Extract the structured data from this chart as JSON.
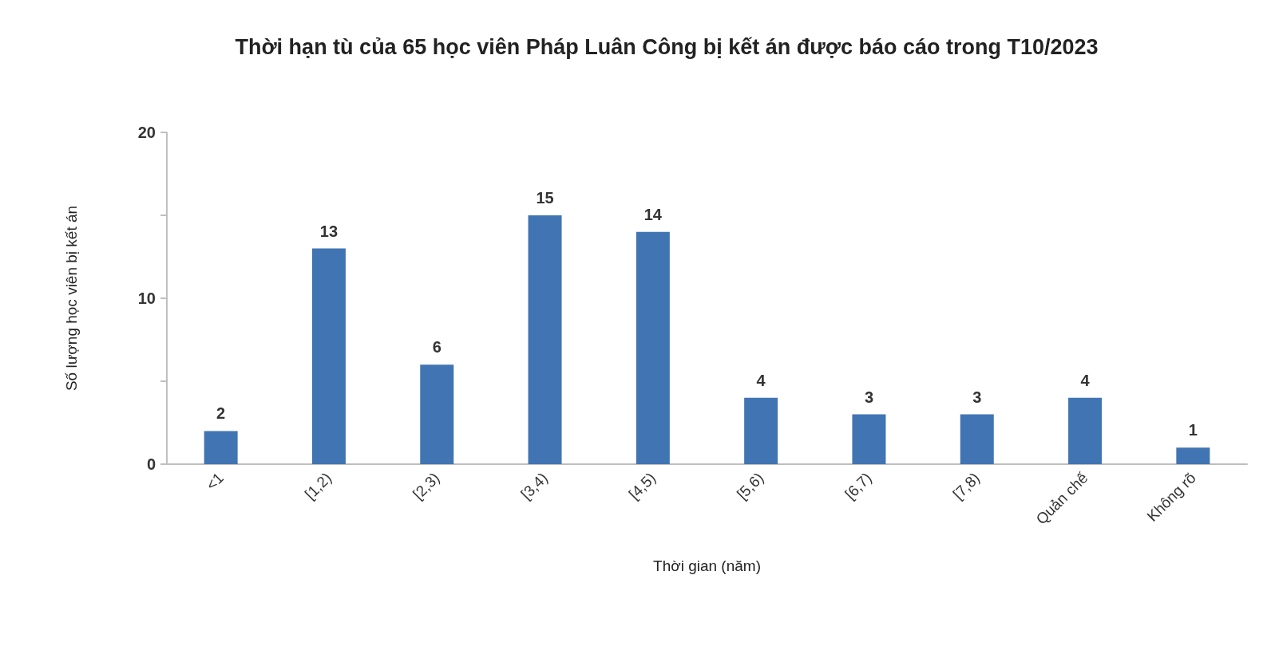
{
  "chart_data": {
    "type": "bar",
    "title": "Thời hạn tù của 65 học viên Pháp Luân Công bị kết án được báo cáo trong T10/2023",
    "xlabel": "Thời gian (năm)",
    "ylabel": "Số lượng học viên bị kết án",
    "categories": [
      "<1",
      "[1,2)",
      "[2,3)",
      "[3,4)",
      "[4,5)",
      "[5,6)",
      "[6,7)",
      "[7,8)",
      "Quản chế",
      "Không rõ"
    ],
    "values": [
      2,
      13,
      6,
      15,
      14,
      4,
      3,
      3,
      4,
      1
    ],
    "color": "#4174b3",
    "ylim": [
      0,
      20
    ],
    "yticks": [
      0,
      {
        "value": 5,
        "label": null
      },
      10,
      {
        "value": 15,
        "label": null
      },
      20
    ],
    "grid": false,
    "data_labels": true
  }
}
